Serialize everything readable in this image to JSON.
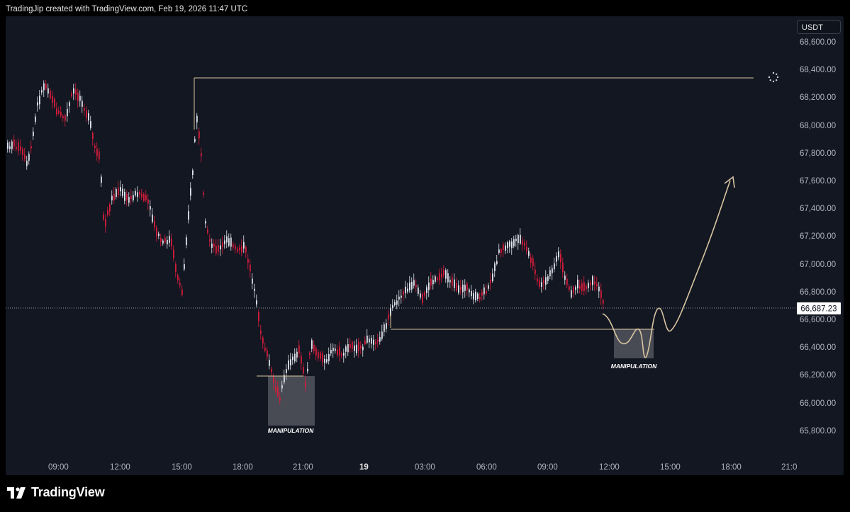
{
  "header": {
    "credit": "TradingJip created with TradingView.com, Feb 19, 2026 11:47 UTC"
  },
  "price_axis": {
    "currency": "USDT",
    "labels": [
      "68,600.00",
      "68,400.00",
      "68,200.00",
      "68,000.00",
      "67,800.00",
      "67,600.00",
      "67,400.00",
      "67,200.00",
      "67,000.00",
      "66,800.00",
      "66,600.00",
      "66,400.00",
      "66,200.00",
      "66,000.00",
      "65,800.00"
    ],
    "last_price": "66,687.23"
  },
  "time_axis": {
    "labels": [
      "09:00",
      "12:00",
      "15:00",
      "18:00",
      "21:00",
      "19",
      "03:00",
      "06:00",
      "09:00",
      "12:00",
      "15:00",
      "18:00",
      "21:0"
    ]
  },
  "annotations": {
    "manipulation_1": "MANIPULATION",
    "manipulation_2": "MANIPULATION"
  },
  "brand": {
    "name": "TradingView"
  },
  "colors": {
    "background": "#131722",
    "up": "#e0e3eb",
    "down": "#d61c3b",
    "annotation_line": "#d8c4a0",
    "zone": "#5b5e66"
  }
}
